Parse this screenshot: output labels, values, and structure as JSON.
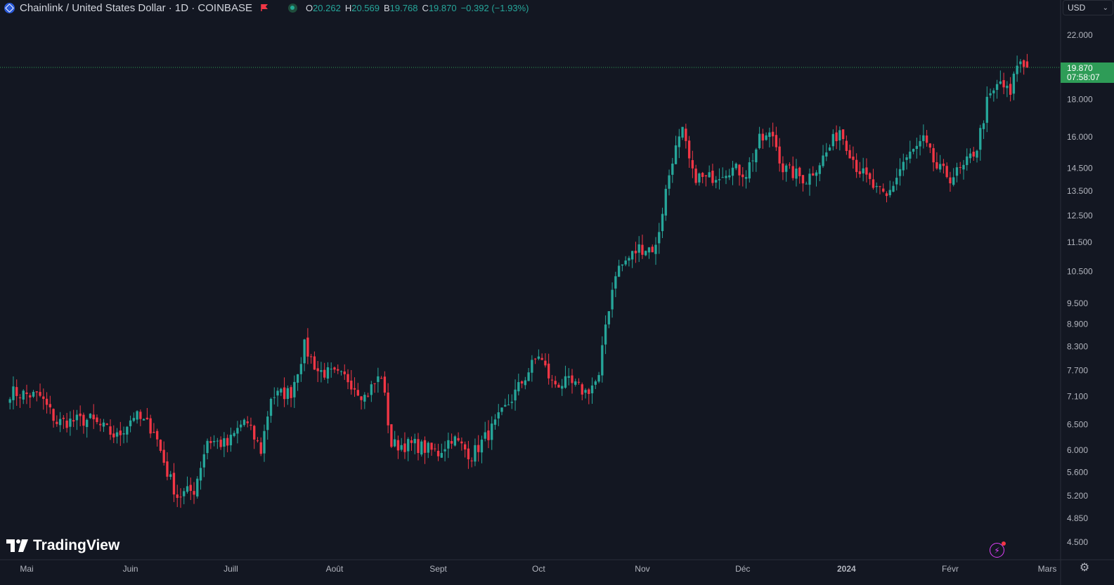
{
  "header": {
    "symbol": "Chainlink / United States Dollar · 1D · COINBASE",
    "ohlc": {
      "o_label": "O",
      "o": "20.262",
      "h_label": "H",
      "h": "20.569",
      "b_label": "B",
      "b": "19.768",
      "c_label": "C",
      "c": "19.870",
      "change": "−0.392 (−1.93%)"
    }
  },
  "currency": {
    "label": "USD"
  },
  "last_price": {
    "price": "19.870",
    "countdown": "07:58:07"
  },
  "watermark": "TradingView",
  "colors": {
    "up": "#26a69a",
    "down": "#f23645",
    "bg": "#131722",
    "label": "#2e9c57"
  },
  "chart_data": {
    "type": "candlestick",
    "y_scale": "log",
    "ylim": [
      4.3,
      23.5
    ],
    "y_ticks": [
      "22.000",
      "18.000",
      "16.000",
      "14.500",
      "13.500",
      "12.500",
      "11.500",
      "10.500",
      "9.500",
      "8.900",
      "8.300",
      "7.700",
      "7.100",
      "6.500",
      "6.000",
      "5.600",
      "5.200",
      "4.850",
      "4.500"
    ],
    "x_ticks": [
      "Mai",
      "Juin",
      "Juill",
      "Août",
      "Sept",
      "Oct",
      "Nov",
      "Déc",
      "2024",
      "Févr",
      "Mars"
    ],
    "close_path": [
      {
        "date": "2023-04-26",
        "close": 7.2
      },
      {
        "date": "2023-05-05",
        "close": 7.1
      },
      {
        "date": "2023-05-10",
        "close": 6.55
      },
      {
        "date": "2023-05-20",
        "close": 6.6
      },
      {
        "date": "2023-05-28",
        "close": 6.25
      },
      {
        "date": "2023-06-02",
        "close": 6.7
      },
      {
        "date": "2023-06-08",
        "close": 6.4
      },
      {
        "date": "2023-06-12",
        "close": 5.6
      },
      {
        "date": "2023-06-15",
        "close": 5.2
      },
      {
        "date": "2023-06-20",
        "close": 5.3
      },
      {
        "date": "2023-06-24",
        "close": 6.2
      },
      {
        "date": "2023-06-30",
        "close": 6.1
      },
      {
        "date": "2023-07-05",
        "close": 6.6
      },
      {
        "date": "2023-07-10",
        "close": 6.0
      },
      {
        "date": "2023-07-13",
        "close": 7.1
      },
      {
        "date": "2023-07-19",
        "close": 7.2
      },
      {
        "date": "2023-07-23",
        "close": 8.3
      },
      {
        "date": "2023-07-27",
        "close": 7.7
      },
      {
        "date": "2023-08-05",
        "close": 7.5
      },
      {
        "date": "2023-08-10",
        "close": 7.1
      },
      {
        "date": "2023-08-15",
        "close": 7.6
      },
      {
        "date": "2023-08-18",
        "close": 6.1
      },
      {
        "date": "2023-08-25",
        "close": 6.1
      },
      {
        "date": "2023-09-01",
        "close": 5.95
      },
      {
        "date": "2023-09-05",
        "close": 6.25
      },
      {
        "date": "2023-09-11",
        "close": 5.9
      },
      {
        "date": "2023-09-18",
        "close": 6.5
      },
      {
        "date": "2023-09-25",
        "close": 7.3
      },
      {
        "date": "2023-10-01",
        "close": 8.1
      },
      {
        "date": "2023-10-05",
        "close": 7.4
      },
      {
        "date": "2023-10-10",
        "close": 7.4
      },
      {
        "date": "2023-10-15",
        "close": 7.2
      },
      {
        "date": "2023-10-19",
        "close": 7.5
      },
      {
        "date": "2023-10-21",
        "close": 8.9
      },
      {
        "date": "2023-10-24",
        "close": 10.5
      },
      {
        "date": "2023-10-31",
        "close": 11.3
      },
      {
        "date": "2023-11-05",
        "close": 11.3
      },
      {
        "date": "2023-11-08",
        "close": 13.5
      },
      {
        "date": "2023-11-10",
        "close": 15.0
      },
      {
        "date": "2023-11-13",
        "close": 16.2
      },
      {
        "date": "2023-11-16",
        "close": 14.2
      },
      {
        "date": "2023-11-20",
        "close": 14.0
      },
      {
        "date": "2023-11-27",
        "close": 14.5
      },
      {
        "date": "2023-12-02",
        "close": 14.3
      },
      {
        "date": "2023-12-06",
        "close": 15.8
      },
      {
        "date": "2023-12-10",
        "close": 16.1
      },
      {
        "date": "2023-12-13",
        "close": 14.5
      },
      {
        "date": "2023-12-20",
        "close": 14.0
      },
      {
        "date": "2023-12-26",
        "close": 15.2
      },
      {
        "date": "2023-12-30",
        "close": 16.4
      },
      {
        "date": "2024-01-04",
        "close": 14.6
      },
      {
        "date": "2024-01-10",
        "close": 13.5
      },
      {
        "date": "2024-01-13",
        "close": 13.2
      },
      {
        "date": "2024-01-18",
        "close": 14.8
      },
      {
        "date": "2024-01-24",
        "close": 15.8
      },
      {
        "date": "2024-01-28",
        "close": 14.5
      },
      {
        "date": "2024-02-01",
        "close": 14.1
      },
      {
        "date": "2024-02-05",
        "close": 14.5
      },
      {
        "date": "2024-02-09",
        "close": 15.5
      },
      {
        "date": "2024-02-12",
        "close": 17.8
      },
      {
        "date": "2024-02-16",
        "close": 19.0
      },
      {
        "date": "2024-02-19",
        "close": 18.2
      },
      {
        "date": "2024-02-21",
        "close": 20.2
      },
      {
        "date": "2024-02-24",
        "close": 19.87
      }
    ]
  }
}
